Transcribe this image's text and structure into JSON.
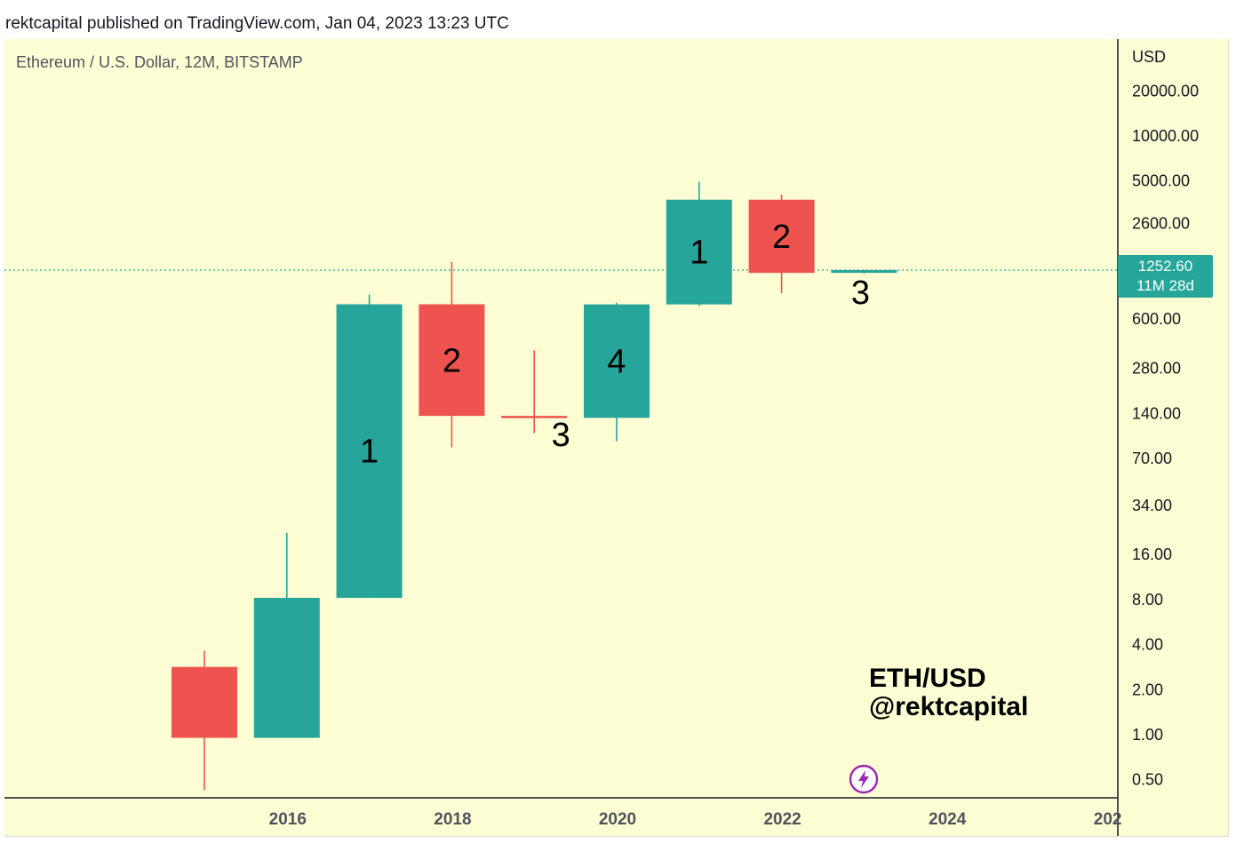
{
  "header": {
    "publisher_line": "rektcapital published on TradingView.com, Jan 04, 2023 13:23 UTC"
  },
  "legend": {
    "symbol_line": "Ethereum / U.S. Dollar, 12M, BITSTAMP"
  },
  "watermark": {
    "line1": "ETH/USD",
    "line2": "@rektcapital"
  },
  "price_tag": {
    "price": "1252.60",
    "countdown": "11M 28d"
  },
  "colors": {
    "up": "#26a69a",
    "down": "#ef5350",
    "background": "#fefed4",
    "axis_text": "#131722",
    "bolt": "#9c27b0"
  },
  "icons": {
    "bolt": "lightning-bolt-icon"
  },
  "chart_data": {
    "type": "candlestick",
    "scale": "log",
    "currency_label": "USD",
    "y_ticks": [
      {
        "value": 20000,
        "label": "20000.00"
      },
      {
        "value": 10000,
        "label": "10000.00"
      },
      {
        "value": 5000,
        "label": "5000.00"
      },
      {
        "value": 2600,
        "label": "2600.00"
      },
      {
        "value": 600,
        "label": "600.00"
      },
      {
        "value": 280,
        "label": "280.00"
      },
      {
        "value": 140,
        "label": "140.00"
      },
      {
        "value": 70,
        "label": "70.00"
      },
      {
        "value": 34,
        "label": "34.00"
      },
      {
        "value": 16,
        "label": "16.00"
      },
      {
        "value": 8,
        "label": "8.00"
      },
      {
        "value": 4,
        "label": "4.00"
      },
      {
        "value": 2,
        "label": "2.00"
      },
      {
        "value": 1,
        "label": "1.00"
      },
      {
        "value": 0.5,
        "label": "0.50"
      }
    ],
    "x_ticks": [
      "2016",
      "2018",
      "2020",
      "2022",
      "2024",
      "202"
    ],
    "candles": [
      {
        "year": 2015,
        "open": 2.8,
        "high": 3.6,
        "low": 0.42,
        "close": 0.94
      },
      {
        "year": 2016,
        "open": 0.94,
        "high": 22,
        "low": 0.94,
        "close": 8.1
      },
      {
        "year": 2017,
        "open": 8.1,
        "high": 860,
        "low": 8.1,
        "close": 740
      },
      {
        "year": 2018,
        "open": 740,
        "high": 1420,
        "low": 82,
        "close": 133
      },
      {
        "year": 2019,
        "open": 133,
        "high": 365,
        "low": 102,
        "close": 130
      },
      {
        "year": 2020,
        "open": 129,
        "high": 760,
        "low": 90,
        "close": 739
      },
      {
        "year": 2021,
        "open": 739,
        "high": 4870,
        "low": 720,
        "close": 3700
      },
      {
        "year": 2022,
        "open": 3700,
        "high": 4000,
        "low": 880,
        "close": 1200
      },
      {
        "year": 2023,
        "open": 1200,
        "high": 1260,
        "low": 1190,
        "close": 1252.6
      }
    ],
    "current_price": 1252.6,
    "annotations": [
      {
        "year": 2017,
        "text": "1"
      },
      {
        "year": 2018,
        "text": "2"
      },
      {
        "year": 2019,
        "text": "3"
      },
      {
        "year": 2020,
        "text": "4"
      },
      {
        "year": 2021,
        "text": "1"
      },
      {
        "year": 2022,
        "text": "2"
      },
      {
        "year": 2023,
        "text": "3"
      }
    ]
  }
}
